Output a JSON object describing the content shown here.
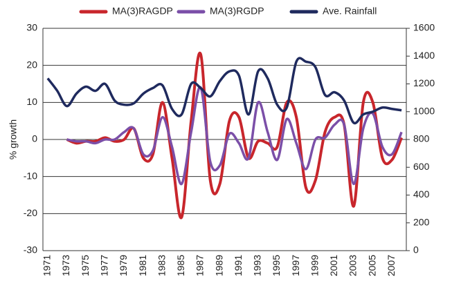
{
  "chart_data": {
    "type": "line",
    "y_label": "% growth",
    "categories": [
      "1971",
      null,
      "1973",
      null,
      "1975",
      null,
      "1977",
      null,
      "1979",
      null,
      "1981",
      null,
      "1983",
      null,
      "1985",
      null,
      "1987",
      null,
      "1989",
      null,
      "1991",
      null,
      "1993",
      null,
      "1995",
      null,
      "1997",
      null,
      "1999",
      null,
      "2001",
      null,
      "2003",
      null,
      "2005",
      null,
      "2007",
      null
    ],
    "series": [
      {
        "name": "MA(3)RAGDP",
        "color": "#c8262c",
        "values": [
          null,
          null,
          0,
          -1,
          -0.5,
          -0.5,
          0.5,
          -0.5,
          0,
          3,
          -5,
          -4,
          10,
          -5,
          -21,
          5,
          23,
          -11,
          -12,
          5,
          6,
          -5,
          -0.5,
          -1,
          -2,
          10,
          6,
          -13,
          -11,
          2,
          6,
          4,
          -18,
          10,
          10,
          -5,
          -5.5,
          0.5
        ]
      },
      {
        "name": "MA(3)RGDP",
        "color": "#7b4fa8",
        "values": [
          null,
          null,
          0,
          -0.5,
          -0.5,
          -1,
          0,
          0,
          2,
          3,
          -4,
          -3,
          6,
          -2,
          -12,
          2,
          14,
          -6,
          -7,
          1.5,
          -1,
          -5,
          10,
          2,
          -5.5,
          5.5,
          -1,
          -8,
          0,
          0.5,
          4,
          4,
          -12,
          3,
          7,
          -2,
          -4,
          2
        ]
      },
      {
        "name": "Ave. Rainfall",
        "color": "#1f2a5e",
        "axis": "y2",
        "values": [
          1240,
          1150,
          1040,
          1130,
          1180,
          1150,
          1200,
          1080,
          1050,
          1060,
          1130,
          1170,
          1190,
          1020,
          980,
          1200,
          1170,
          1110,
          1220,
          1290,
          1260,
          980,
          1290,
          1240,
          1050,
          1030,
          1360,
          1360,
          1320,
          1120,
          1140,
          1080,
          920,
          980,
          1000,
          1030,
          1020,
          1010
        ]
      }
    ],
    "ylim": [
      -30,
      30
    ],
    "yticks": [
      -30,
      -20,
      -10,
      0,
      10,
      20,
      30
    ],
    "y2lim": [
      0,
      1600
    ],
    "y2ticks": [
      0,
      200,
      400,
      600,
      800,
      1000,
      1200,
      1400,
      1600
    ],
    "grid": true,
    "legend": "top"
  }
}
